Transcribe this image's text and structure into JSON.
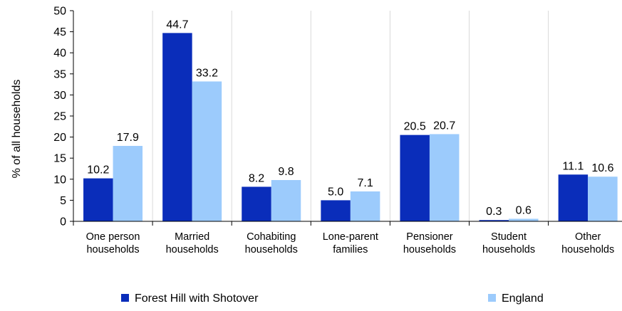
{
  "chart_data": {
    "type": "bar",
    "ylabel": "% of all households",
    "xlabel": "",
    "ylim": [
      0,
      50
    ],
    "yticks": [
      0,
      5,
      10,
      15,
      20,
      25,
      30,
      35,
      40,
      45,
      50
    ],
    "grid": "vertical separators",
    "legend_position": "bottom",
    "categories": [
      [
        "One person",
        "households"
      ],
      [
        "Married",
        "households"
      ],
      [
        "Cohabiting",
        "households"
      ],
      [
        "Lone-parent",
        "families"
      ],
      [
        "Pensioner",
        "households"
      ],
      [
        "Student",
        "households"
      ],
      [
        "Other",
        "households"
      ]
    ],
    "series": [
      {
        "name": "Forest Hill with Shotover",
        "color": "#0a2dba",
        "values": [
          10.2,
          44.7,
          8.2,
          5.0,
          20.5,
          0.3,
          11.1
        ],
        "labels": [
          "10.2",
          "44.7",
          "8.2",
          "5.0",
          "20.5",
          "0.3",
          "11.1"
        ]
      },
      {
        "name": "England",
        "color": "#9ccbfc",
        "values": [
          17.9,
          33.2,
          9.8,
          7.1,
          20.7,
          0.6,
          10.6
        ],
        "labels": [
          "17.9",
          "33.2",
          "9.8",
          "7.1",
          "20.7",
          "0.6",
          "10.6"
        ]
      }
    ]
  }
}
